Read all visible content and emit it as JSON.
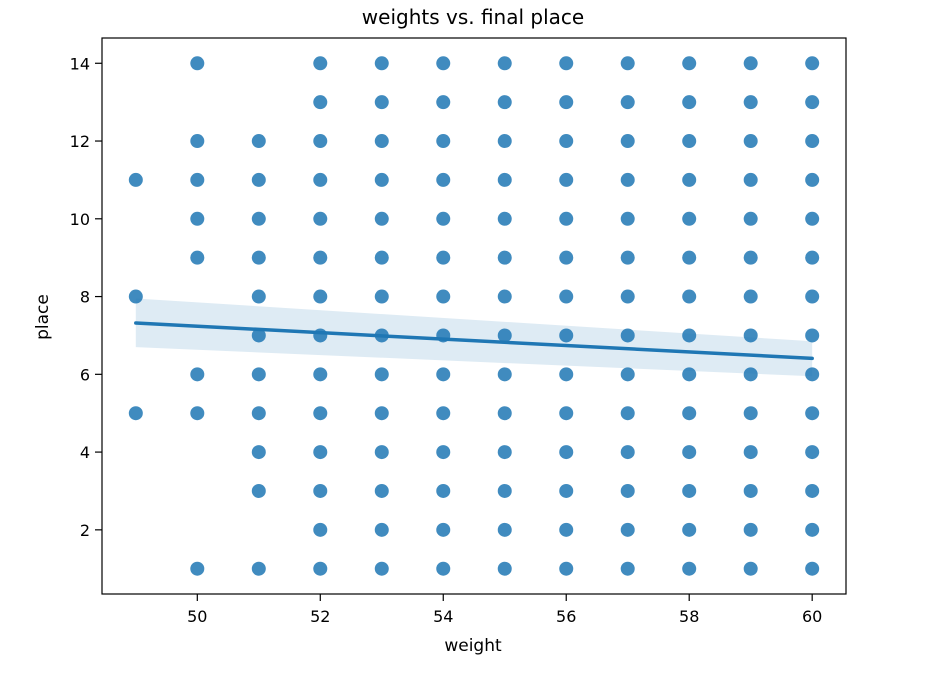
{
  "chart_data": {
    "type": "scatter",
    "title": "weights vs. final place",
    "xlabel": "weight",
    "ylabel": "place",
    "xlim": [
      48.45,
      60.55
    ],
    "ylim": [
      0.35,
      14.65
    ],
    "xticks": [
      50,
      52,
      54,
      56,
      58,
      60
    ],
    "yticks": [
      2,
      4,
      6,
      8,
      10,
      12,
      14
    ],
    "grid": false,
    "legend": "none",
    "color": "#1f77b4",
    "points_by_weight": [
      {
        "x": 49,
        "places": [
          5,
          8,
          11
        ]
      },
      {
        "x": 50,
        "places": [
          1,
          5,
          6,
          9,
          10,
          11,
          12,
          14
        ]
      },
      {
        "x": 51,
        "places": [
          1,
          3,
          4,
          5,
          6,
          7,
          8,
          9,
          10,
          11,
          12
        ]
      },
      {
        "x": 52,
        "places": [
          1,
          2,
          3,
          4,
          5,
          6,
          7,
          8,
          9,
          10,
          11,
          12,
          13,
          14
        ]
      },
      {
        "x": 53,
        "places": [
          1,
          2,
          3,
          4,
          5,
          6,
          7,
          8,
          9,
          10,
          11,
          12,
          13,
          14
        ]
      },
      {
        "x": 54,
        "places": [
          1,
          2,
          3,
          4,
          5,
          6,
          7,
          8,
          9,
          10,
          11,
          12,
          13,
          14
        ]
      },
      {
        "x": 55,
        "places": [
          1,
          2,
          3,
          4,
          5,
          6,
          7,
          8,
          9,
          10,
          11,
          12,
          13,
          14
        ]
      },
      {
        "x": 56,
        "places": [
          1,
          2,
          3,
          4,
          5,
          6,
          7,
          8,
          9,
          10,
          11,
          12,
          13,
          14
        ]
      },
      {
        "x": 57,
        "places": [
          1,
          2,
          3,
          4,
          5,
          6,
          7,
          8,
          9,
          10,
          11,
          12,
          13,
          14
        ]
      },
      {
        "x": 58,
        "places": [
          1,
          2,
          3,
          4,
          5,
          6,
          7,
          8,
          9,
          10,
          11,
          12,
          13,
          14
        ]
      },
      {
        "x": 59,
        "places": [
          1,
          2,
          3,
          4,
          5,
          6,
          7,
          8,
          9,
          10,
          11,
          12,
          13,
          14
        ]
      },
      {
        "x": 60,
        "places": [
          1,
          2,
          3,
          4,
          5,
          6,
          7,
          8,
          9,
          10,
          11,
          12,
          13,
          14
        ]
      }
    ],
    "regression": {
      "x": [
        49,
        60
      ],
      "y": [
        7.32,
        6.41
      ],
      "ci_lower": [
        6.7,
        5.95
      ],
      "ci_upper": [
        7.95,
        6.85
      ]
    }
  }
}
